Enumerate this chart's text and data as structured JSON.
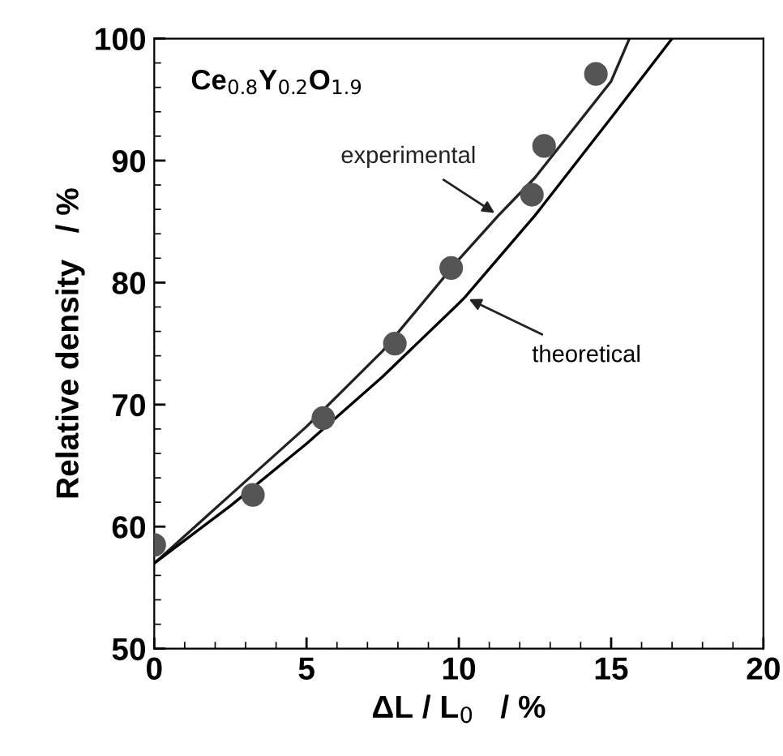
{
  "chart_data": {
    "type": "line",
    "xlabel": "ΔL / L$_{0}$   / %",
    "ylabel": "Relative density   / %",
    "annotations": [
      "Ce$_{0.8}$Y$_{0.2}$O$_{1.9}$"
    ],
    "xlim": [
      0,
      20
    ],
    "xticks": [
      0,
      5,
      10,
      15,
      20
    ],
    "ylim": [
      50,
      100
    ],
    "yticks": [
      50,
      60,
      70,
      80,
      90,
      100
    ],
    "grid": false,
    "legend": false,
    "series": [
      {
        "type": "scatter",
        "color": "#555555",
        "marker": "circle",
        "x": [
          0,
          3.24,
          5.55,
          7.9,
          9.75,
          12.4,
          12.8,
          14.5
        ],
        "values": [
          58.5,
          62.6,
          68.9,
          75.0,
          81.2,
          87.2,
          91.2,
          97.1
        ]
      },
      {
        "name": "experimental",
        "color": "#222222",
        "line_style": "solid",
        "x": [
          0,
          2.5,
          5,
          7.5,
          10,
          11.3,
          12.5,
          15,
          15.6
        ],
        "values": [
          57,
          62.6,
          68.2,
          74.4,
          81.9,
          85.5,
          88.6,
          96.5,
          100
        ]
      },
      {
        "name": "theoretical",
        "color": "#000000",
        "line_style": "solid",
        "x": [
          0,
          2.5,
          5,
          7.5,
          10,
          10.2,
          12.5,
          15,
          17
        ],
        "values": [
          57,
          61.7,
          66.8,
          72.3,
          78.3,
          78.8,
          85.5,
          93.5,
          100
        ]
      }
    ]
  }
}
